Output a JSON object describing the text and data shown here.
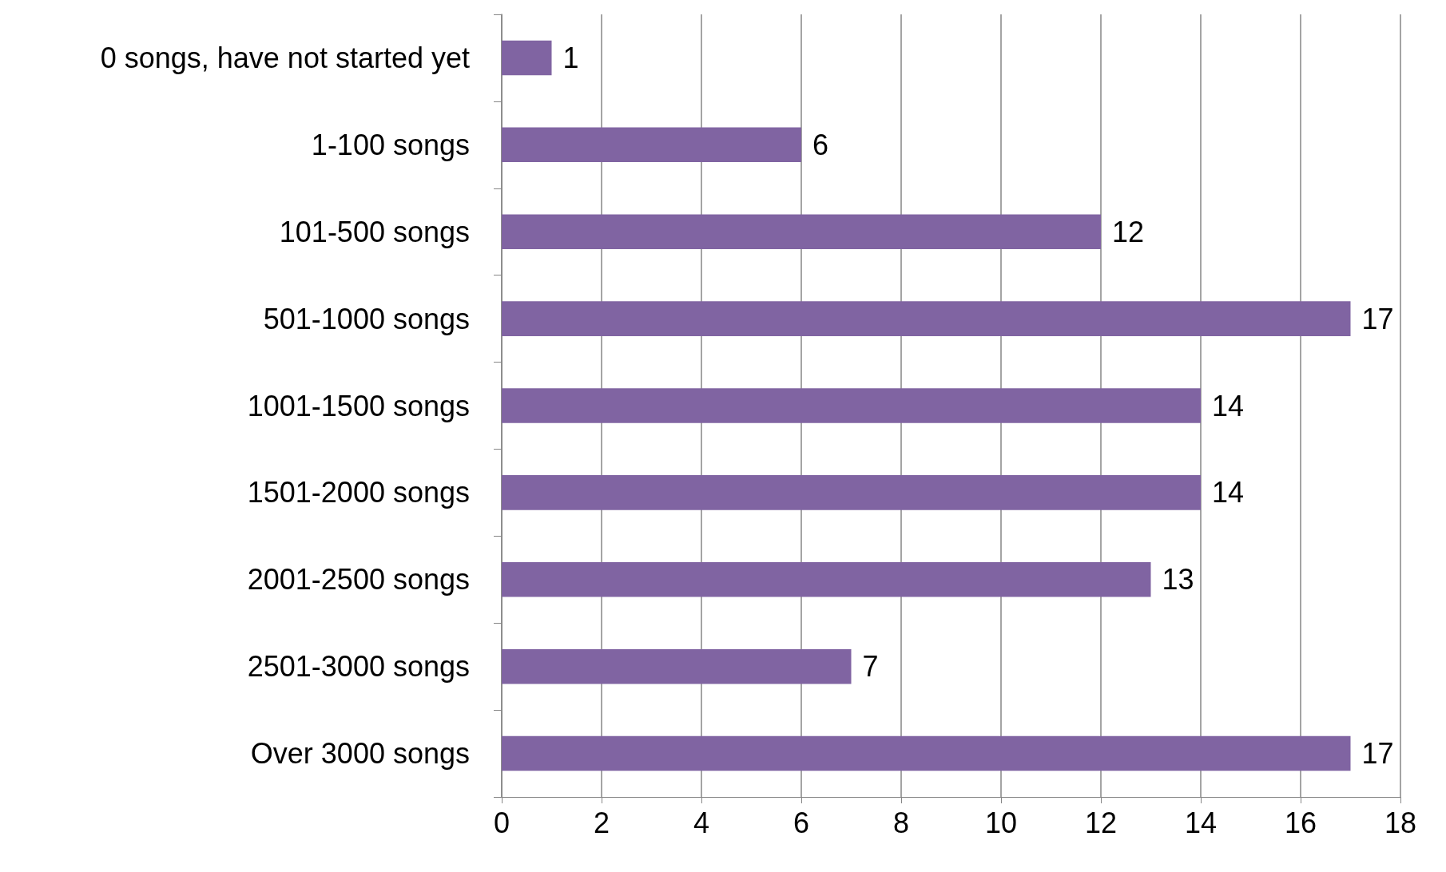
{
  "chart_data": {
    "type": "bar",
    "orientation": "horizontal",
    "categories": [
      "0 songs, have not started yet",
      "1-100 songs",
      "101-500 songs",
      "501-1000 songs",
      "1001-1500 songs",
      "1501-2000 songs",
      "2001-2500 songs",
      "2501-3000 songs",
      "Over 3000 songs"
    ],
    "values": [
      1,
      6,
      12,
      17,
      14,
      14,
      13,
      7,
      17
    ],
    "color": "#8064a2",
    "xlim": [
      0,
      18
    ],
    "xticks": [
      0,
      2,
      4,
      6,
      8,
      10,
      12,
      14,
      16,
      18
    ],
    "grid": "x",
    "data_labels": true
  }
}
